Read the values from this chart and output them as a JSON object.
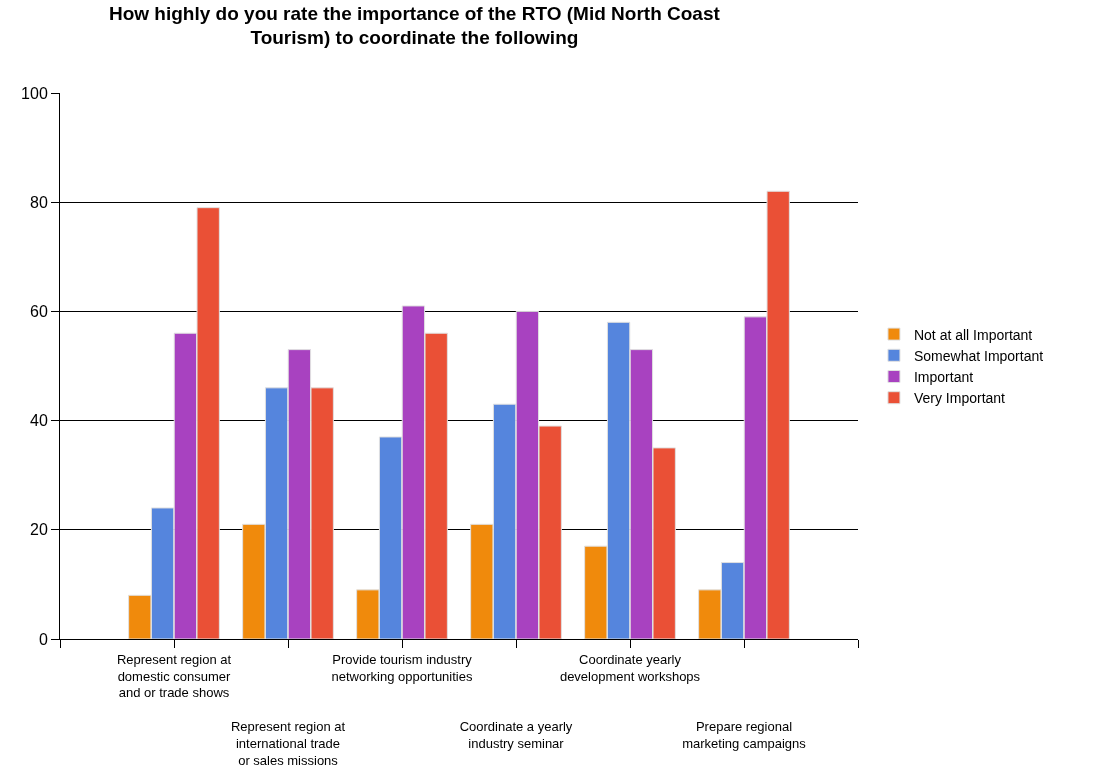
{
  "chart_data": {
    "type": "bar",
    "title": "How highly do you rate the importance of the RTO (Mid North Coast\nTourism) to coordinate the following",
    "categories": [
      "Represent region at\ndomestic consumer\nand or trade shows",
      "Represent region at\ninternational trade\nor sales missions",
      "Provide tourism industry\nnetworking opportunities",
      "Coordinate a yearly\nindustry seminar",
      "Coordinate yearly\ndevelopment workshops",
      "Prepare regional\nmarketing campaigns"
    ],
    "series": [
      {
        "name": "Not at all Important",
        "color": "#f08a0c",
        "values": [
          8,
          21,
          9,
          21,
          17,
          9
        ]
      },
      {
        "name": "Somewhat Important",
        "color": "#5585dd",
        "values": [
          24,
          46,
          37,
          43,
          58,
          14
        ]
      },
      {
        "name": "Important",
        "color": "#a842c0",
        "values": [
          56,
          53,
          61,
          60,
          53,
          59
        ]
      },
      {
        "name": "Very Important",
        "color": "#ea5036",
        "values": [
          79,
          46,
          56,
          39,
          35,
          82
        ]
      }
    ],
    "ylim": [
      0,
      100
    ],
    "yticks": [
      0,
      20,
      40,
      60,
      80,
      100
    ],
    "grid": "y",
    "legend": "right"
  }
}
